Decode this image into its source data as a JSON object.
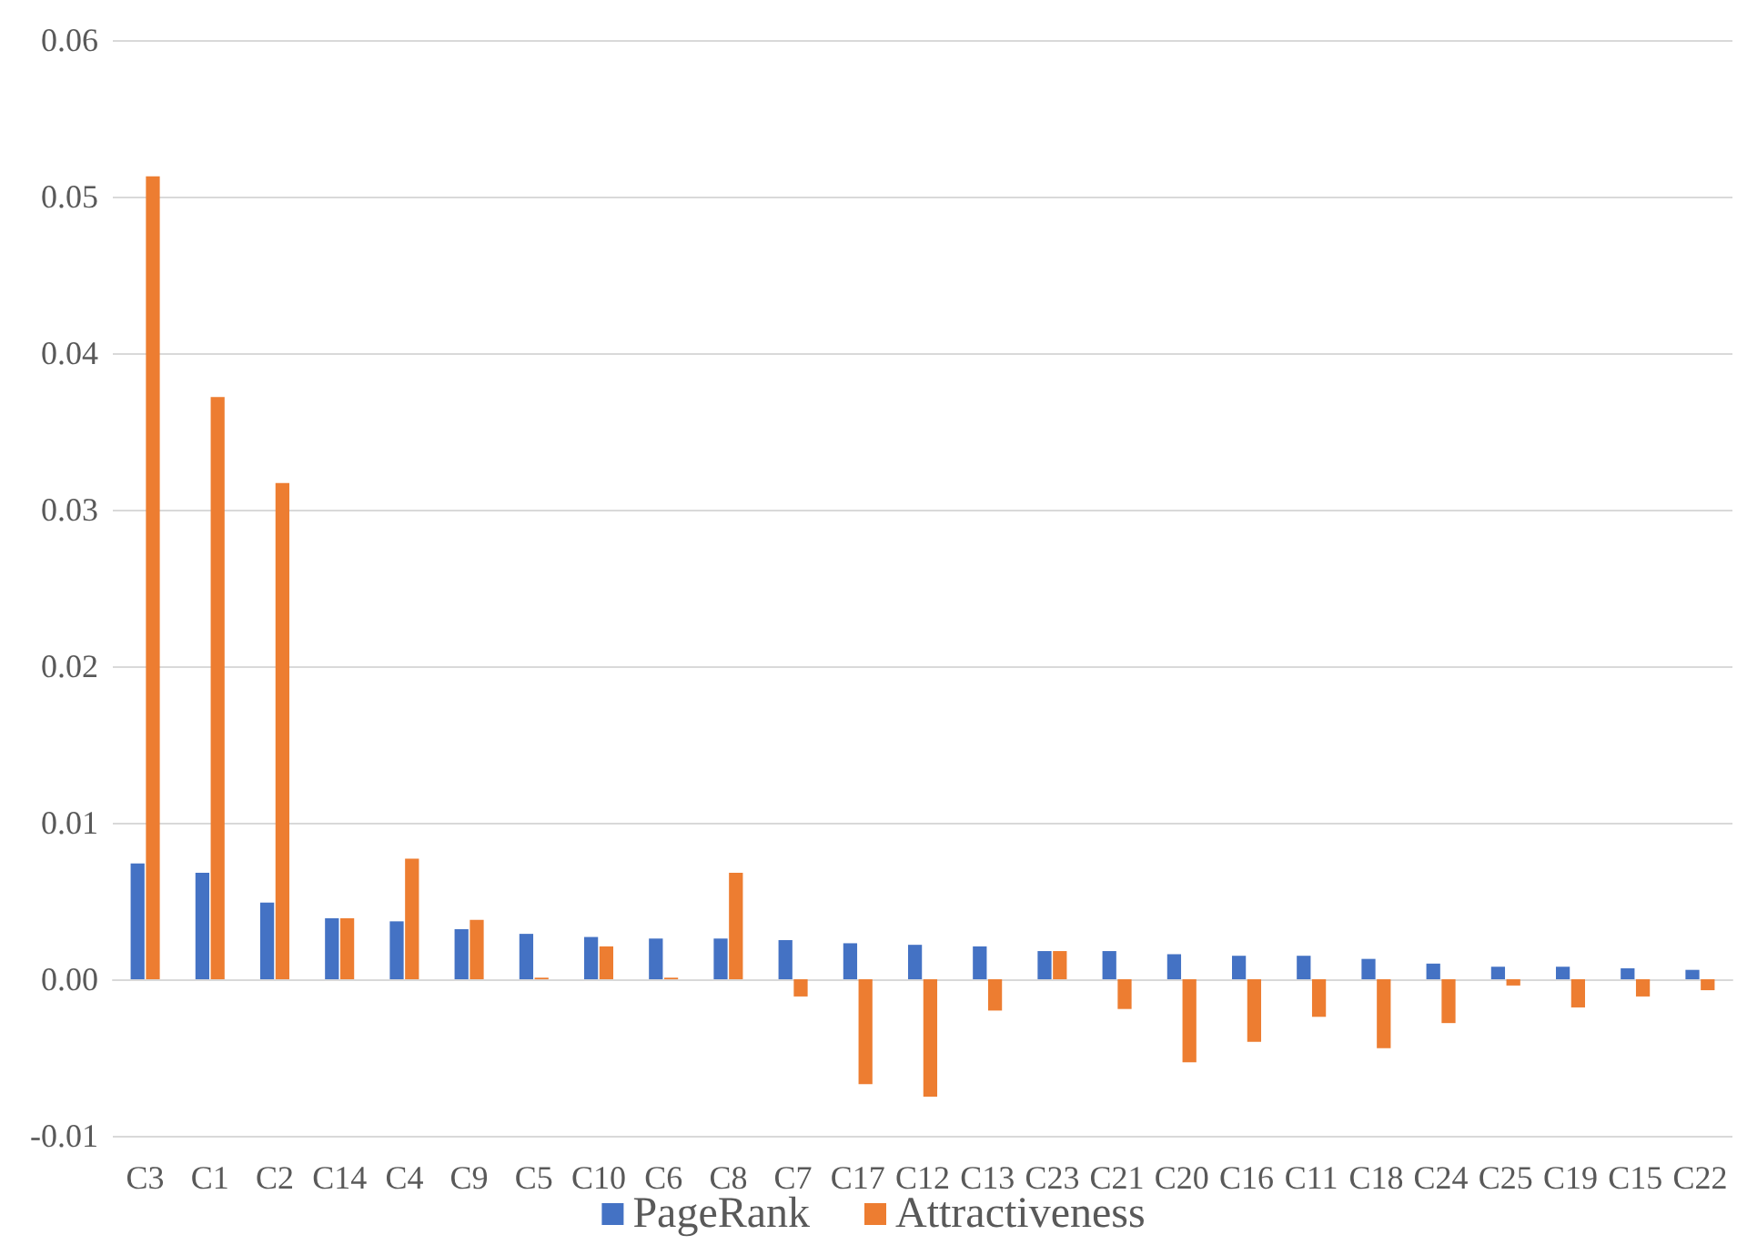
{
  "chart_data": {
    "type": "bar",
    "categories": [
      "C3",
      "C1",
      "C2",
      "C14",
      "C4",
      "C9",
      "C5",
      "C10",
      "C6",
      "C8",
      "C7",
      "C17",
      "C12",
      "C13",
      "C23",
      "C21",
      "C20",
      "C16",
      "C11",
      "C18",
      "C24",
      "C25",
      "C19",
      "C15",
      "C22"
    ],
    "series": [
      {
        "name": "PageRank",
        "color": "#4472c4",
        "values": [
          0.0074,
          0.0068,
          0.0049,
          0.0039,
          0.0037,
          0.0032,
          0.0029,
          0.0027,
          0.0026,
          0.0026,
          0.0025,
          0.0023,
          0.0022,
          0.0021,
          0.0018,
          0.0018,
          0.0016,
          0.0015,
          0.0015,
          0.0013,
          0.001,
          0.0008,
          0.0008,
          0.0007,
          0.0006
        ]
      },
      {
        "name": "Attractiveness",
        "color": "#ed7d31",
        "values": [
          0.0513,
          0.0372,
          0.0317,
          0.0039,
          0.0077,
          0.0038,
          0.0001,
          0.0021,
          0.0001,
          0.0068,
          -0.0011,
          -0.0067,
          -0.0075,
          -0.002,
          0.0018,
          -0.0019,
          -0.0053,
          -0.004,
          -0.0024,
          -0.0044,
          -0.0028,
          -0.0004,
          -0.0018,
          -0.0011,
          -0.0007
        ]
      }
    ],
    "ylim": [
      -0.01,
      0.06
    ],
    "yticks": [
      -0.01,
      {
        "value": 0,
        "label": "0.00"
      },
      0.01,
      0.02,
      0.03,
      0.04,
      0.05,
      0.06
    ],
    "grid": "y",
    "legend": "bottom"
  }
}
